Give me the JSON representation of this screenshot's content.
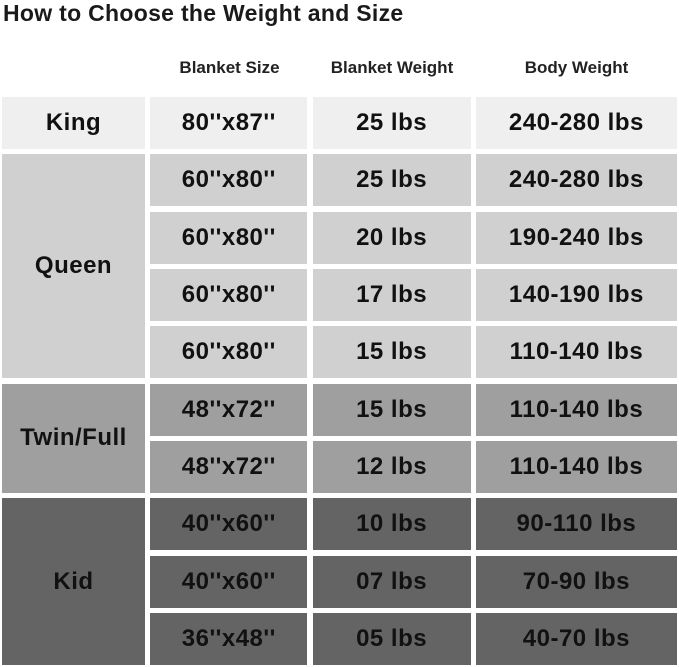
{
  "title": "How to Choose the Weight and Size",
  "headers": {
    "size": "Blanket Size",
    "weight": "Blanket Weight",
    "body": "Body Weight"
  },
  "colors": {
    "king": "#efefef",
    "queen": "#d0d0d0",
    "twin": "#9f9f9f",
    "kid": "#646464"
  },
  "groups": [
    {
      "name": "King",
      "rows": [
        [
          "80''x87''",
          "25 lbs",
          "240-280 lbs"
        ]
      ]
    },
    {
      "name": "Queen",
      "rows": [
        [
          "60''x80''",
          "25 lbs",
          "240-280 lbs"
        ],
        [
          "60''x80''",
          "20 lbs",
          "190-240 lbs"
        ],
        [
          "60''x80''",
          "17 lbs",
          "140-190 lbs"
        ],
        [
          "60''x80''",
          "15 lbs",
          "110-140 lbs"
        ]
      ]
    },
    {
      "name": "Twin/Full",
      "rows": [
        [
          "48''x72''",
          "15 lbs",
          "110-140 lbs"
        ],
        [
          "48''x72''",
          "12 lbs",
          "110-140 lbs"
        ]
      ]
    },
    {
      "name": "Kid",
      "rows": [
        [
          "40''x60''",
          "10 lbs",
          "90-110 lbs"
        ],
        [
          "40''x60''",
          "07 lbs",
          "70-90 lbs"
        ],
        [
          "36''x48''",
          "05 lbs",
          "40-70 lbs"
        ]
      ]
    }
  ]
}
